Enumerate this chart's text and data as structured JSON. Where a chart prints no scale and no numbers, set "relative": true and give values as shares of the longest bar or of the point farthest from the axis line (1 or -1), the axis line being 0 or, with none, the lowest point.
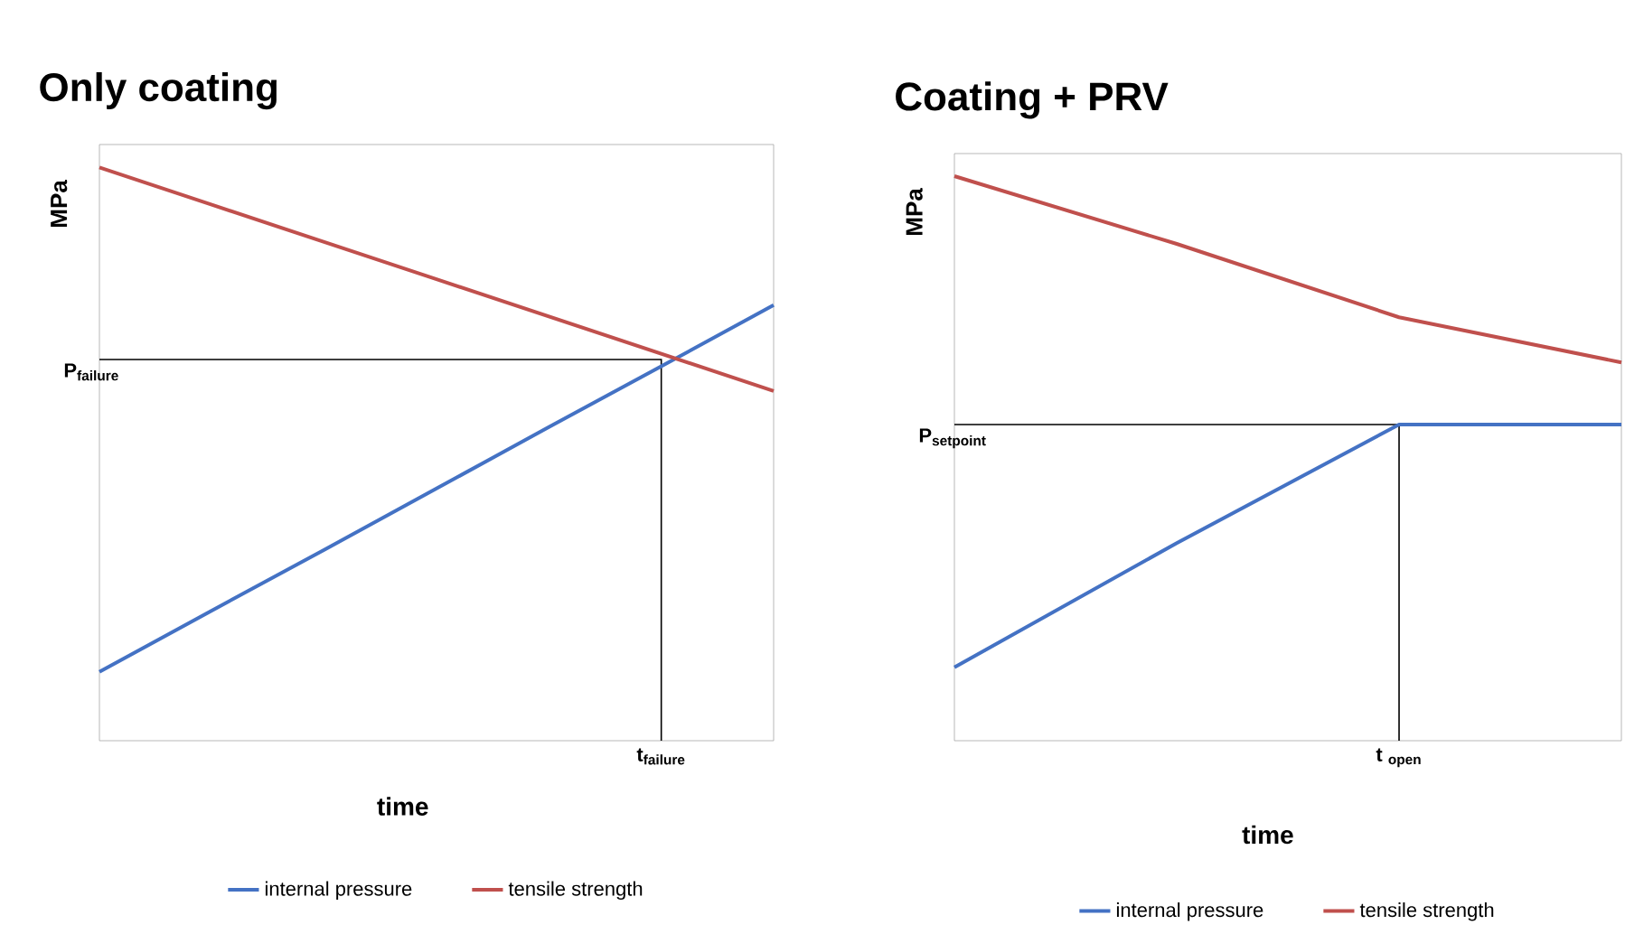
{
  "chart_data": [
    {
      "type": "line",
      "relative": true,
      "title": "Only coating",
      "xlabel": "time",
      "ylabel": "MPa",
      "categories": [
        null,
        null,
        null,
        null,
        null,
        null,
        null
      ],
      "tick_labels": false,
      "legend": "bottom",
      "series": [
        {
          "name": "internal pressure",
          "color": "#4472c4",
          "values": [
            0.12,
            0.227,
            0.333,
            0.44,
            0.547,
            0.653,
            0.76
          ]
        },
        {
          "name": "tensile strength",
          "color": "#c0504d",
          "values": [
            1,
            0.935,
            0.87,
            0.805,
            0.74,
            0.675,
            0.61
          ]
        }
      ],
      "ref_lines": [
        {
          "axis": "y",
          "value": 0.665,
          "label": "P$_{failure}$",
          "color": "#000000"
        }
      ],
      "annotations": [
        "t$_{failure}$"
      ]
    },
    {
      "type": "line",
      "relative": true,
      "title": "Coating + PRV",
      "xlabel": "time",
      "ylabel": "MPa",
      "categories": [
        null,
        null,
        null,
        null
      ],
      "tick_labels": false,
      "legend": "bottom",
      "series": [
        {
          "name": "internal pressure",
          "color": "#4472c4",
          "values": [
            0.13,
            0.35,
            0.56,
            0.56
          ]
        },
        {
          "name": "tensile strength",
          "color": "#c0504d",
          "values": [
            1,
            0.88,
            0.75,
            0.67
          ]
        }
      ],
      "ref_lines": [
        {
          "axis": "y",
          "value": 0.56,
          "label": "P$_{setpoint}$",
          "color": "#000000"
        }
      ],
      "annotations": [
        "t $_{open}$"
      ]
    }
  ]
}
